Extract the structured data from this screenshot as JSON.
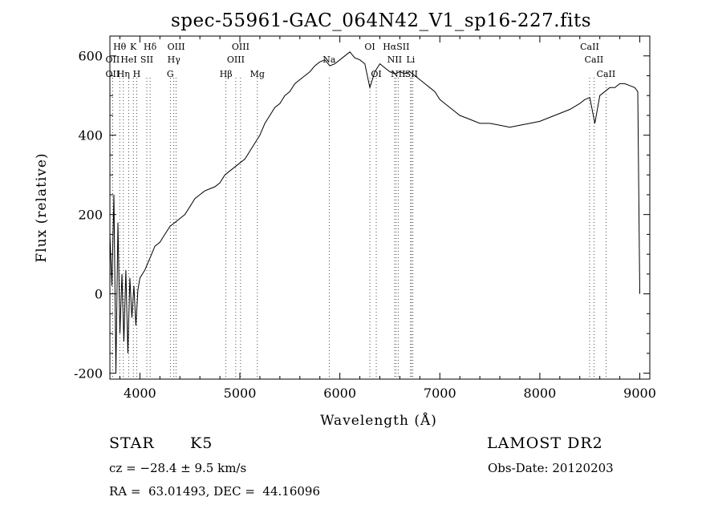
{
  "chart_data": {
    "type": "line",
    "title": "spec-55961-GAC_064N42_V1_sp16-227.fits",
    "xlabel": "Wavelength (Å)",
    "ylabel": "Flux (relative)",
    "xlim": [
      3700,
      9100
    ],
    "ylim": [
      -215,
      650
    ],
    "x_ticks": [
      4000,
      5000,
      6000,
      7000,
      8000,
      9000
    ],
    "y_ticks": [
      -200,
      0,
      200,
      400,
      600
    ],
    "grid": false,
    "series": [
      {
        "x": [
          3700,
          3720,
          3740,
          3760,
          3780,
          3800,
          3820,
          3840,
          3860,
          3880,
          3900,
          3920,
          3940,
          3960,
          3980,
          4000,
          4050,
          4100,
          4150,
          4200,
          4250,
          4300,
          4350,
          4400,
          4450,
          4500,
          4550,
          4600,
          4650,
          4700,
          4750,
          4800,
          4850,
          4900,
          4950,
          5000,
          5050,
          5100,
          5150,
          5200,
          5250,
          5300,
          5350,
          5400,
          5450,
          5500,
          5550,
          5600,
          5650,
          5700,
          5750,
          5800,
          5850,
          5900,
          5950,
          6000,
          6050,
          6100,
          6150,
          6200,
          6250,
          6300,
          6350,
          6400,
          6450,
          6500,
          6550,
          6600,
          6650,
          6700,
          6750,
          6800,
          6850,
          6900,
          6950,
          7000,
          7100,
          7200,
          7300,
          7400,
          7500,
          7600,
          7700,
          7800,
          7900,
          8000,
          8100,
          8200,
          8300,
          8400,
          8450,
          8500,
          8550,
          8600,
          8650,
          8700,
          8750,
          8800,
          8850,
          8900,
          8950,
          8980,
          9000
        ],
        "y": [
          150,
          20,
          250,
          -200,
          180,
          -100,
          50,
          -120,
          60,
          -150,
          40,
          -60,
          20,
          -80,
          10,
          40,
          60,
          90,
          120,
          130,
          150,
          170,
          180,
          190,
          200,
          220,
          240,
          250,
          260,
          265,
          270,
          280,
          300,
          310,
          320,
          330,
          340,
          360,
          380,
          400,
          430,
          450,
          470,
          480,
          500,
          510,
          530,
          540,
          550,
          560,
          575,
          585,
          590,
          575,
          580,
          590,
          600,
          610,
          595,
          590,
          580,
          520,
          560,
          580,
          570,
          560,
          555,
          560,
          555,
          560,
          550,
          540,
          530,
          520,
          510,
          490,
          470,
          450,
          440,
          430,
          430,
          425,
          420,
          425,
          430,
          435,
          445,
          455,
          465,
          480,
          490,
          495,
          430,
          500,
          510,
          520,
          520,
          530,
          530,
          525,
          520,
          510,
          0
        ]
      }
    ],
    "line_labels": [
      {
        "text": "Hθ",
        "x": 3798,
        "row": 1
      },
      {
        "text": "K",
        "x": 3934,
        "row": 1
      },
      {
        "text": "Hδ",
        "x": 4102,
        "row": 1
      },
      {
        "text": "OIII",
        "x": 4363,
        "row": 1
      },
      {
        "text": "OIII",
        "x": 5007,
        "row": 1
      },
      {
        "text": "OI",
        "x": 6300,
        "row": 1
      },
      {
        "text": "HαSII",
        "x": 6563,
        "row": 1
      },
      {
        "text": "CaII",
        "x": 8498,
        "row": 1
      },
      {
        "text": "OII",
        "x": 3727,
        "row": 2
      },
      {
        "text": "HeI",
        "x": 3889,
        "row": 2
      },
      {
        "text": "SII",
        "x": 4069,
        "row": 2
      },
      {
        "text": "Hγ",
        "x": 4340,
        "row": 2
      },
      {
        "text": "OIII",
        "x": 4959,
        "row": 2
      },
      {
        "text": "Na",
        "x": 5893,
        "row": 2
      },
      {
        "text": "NII",
        "x": 6548,
        "row": 2
      },
      {
        "text": "Li",
        "x": 6708,
        "row": 2
      },
      {
        "text": "CaII",
        "x": 8542,
        "row": 2
      },
      {
        "text": "OII",
        "x": 3727,
        "row": 3
      },
      {
        "text": "Hη",
        "x": 3835,
        "row": 3
      },
      {
        "text": "H",
        "x": 3968,
        "row": 3
      },
      {
        "text": "G",
        "x": 4304,
        "row": 3
      },
      {
        "text": "Hβ",
        "x": 4861,
        "row": 3
      },
      {
        "text": "Mg",
        "x": 5175,
        "row": 3
      },
      {
        "text": "OI",
        "x": 6364,
        "row": 3
      },
      {
        "text": "NII",
        "x": 6583,
        "row": 3
      },
      {
        "text": "SII",
        "x": 6716,
        "row": 3
      },
      {
        "text": "CaII",
        "x": 8662,
        "row": 3
      }
    ],
    "line_marks": [
      3727,
      3798,
      3835,
      3889,
      3934,
      3968,
      4069,
      4102,
      4304,
      4340,
      4363,
      4861,
      4959,
      5007,
      5175,
      5893,
      6300,
      6364,
      6548,
      6563,
      6583,
      6708,
      6716,
      6731,
      8498,
      8542,
      8662
    ]
  },
  "info": {
    "object_type": "STAR",
    "subclass": "K5",
    "survey": "LAMOST DR2",
    "cz": "cz = −28.4 ± 9.5 km/s",
    "obs_date": "Obs-Date: 20120203",
    "coords": "RA =  63.01493, DEC =  44.16096"
  }
}
